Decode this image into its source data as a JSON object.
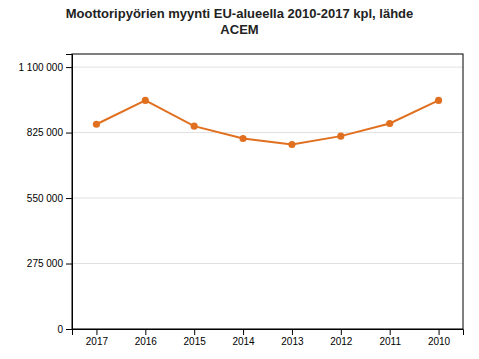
{
  "chart_data": {
    "type": "line",
    "title": "Moottoripyörien myynti EU-alueella 2010-2017 kpl, lähde\nACEM",
    "x": [
      2017,
      2016,
      2015,
      2014,
      2013,
      2012,
      2011,
      2010
    ],
    "values": [
      860000,
      960000,
      852000,
      800000,
      775000,
      810000,
      863000,
      960000
    ],
    "color": "#E07020",
    "marker": "circle",
    "xlim": [
      2017.5,
      2009.5
    ],
    "xticks": [
      2017,
      2016,
      2015,
      2014,
      2013,
      2012,
      2011,
      2010
    ],
    "ylim": [
      0,
      1155000
    ],
    "yticks": [
      0,
      {
        "value": 275000,
        "label": "275 000"
      },
      {
        "value": 550000,
        "label": "550 000"
      },
      {
        "value": 825000,
        "label": "825 000"
      },
      {
        "value": 1100000,
        "label": "1 100 000"
      }
    ],
    "grid": true
  }
}
